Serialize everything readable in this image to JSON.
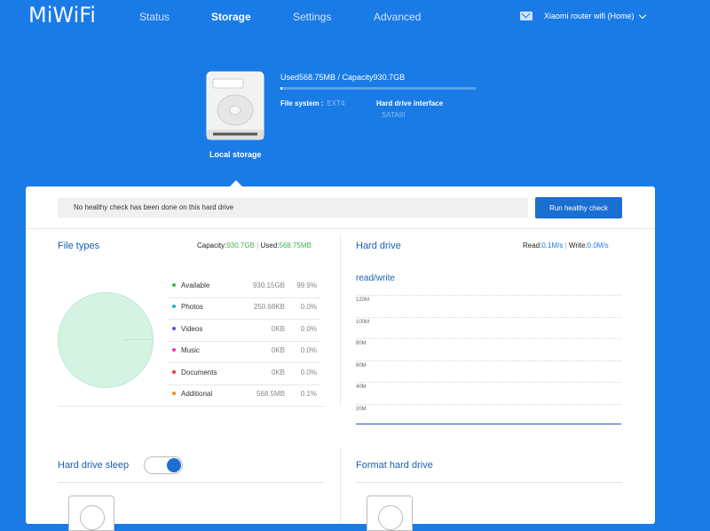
{
  "brand": {
    "logo": "MiWiFi"
  },
  "nav": {
    "items": [
      "Status",
      "Storage",
      "Settings",
      "Advanced"
    ],
    "active": "Storage"
  },
  "router": {
    "name": "Xiaomi router wifi (Home)"
  },
  "storage": {
    "used_capacity": "Used568.75MB / Capacity930.7GB",
    "used_fraction": 0.001,
    "fs_label": "File system :",
    "fs_value": "EXT4",
    "hdi_label": "Hard drive interface",
    "hdi_value": "SATAIII",
    "local_label": "Local storage"
  },
  "health": {
    "message": "No healthy check has been done on this hard drive",
    "button": "Run healthy check"
  },
  "file_types": {
    "title": "File types",
    "capacity_label": "Capacity:",
    "capacity_value": "930.7GB",
    "used_label": "Used:",
    "used_value": "568.75MB",
    "items": [
      {
        "name": "Available",
        "size": "930.15GB",
        "pct": "99.9%",
        "color": "#3ab54a"
      },
      {
        "name": "Photos",
        "size": "250.68KB",
        "pct": "0.0%",
        "color": "#1fb6b6"
      },
      {
        "name": "Videos",
        "size": "0KB",
        "pct": "0.0%",
        "color": "#6a4cd8"
      },
      {
        "name": "Music",
        "size": "0KB",
        "pct": "0.0%",
        "color": "#e83aa8"
      },
      {
        "name": "Documents",
        "size": "0KB",
        "pct": "0.0%",
        "color": "#e83a3a"
      },
      {
        "name": "Additional",
        "size": "568.5MB",
        "pct": "0.1%",
        "color": "#f08a24"
      }
    ]
  },
  "hard_drive": {
    "title": "Hard drive",
    "read_label": "Read:",
    "read_value": "0.1M/s",
    "write_label": "Write:",
    "write_value": "0.0M/s",
    "chart_title": "read/write"
  },
  "chart_data": {
    "type": "line",
    "title": "read/write",
    "y_ticks": [
      "120M",
      "100M",
      "80M",
      "60M",
      "40M",
      "20M"
    ],
    "ylim": [
      0,
      120
    ],
    "series": []
  },
  "sleep": {
    "title": "Hard drive sleep",
    "enabled": true
  },
  "format": {
    "title": "Format hard drive"
  }
}
